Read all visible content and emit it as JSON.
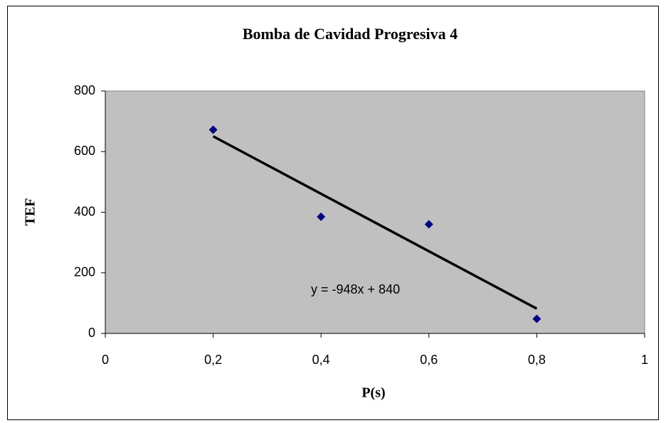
{
  "chart_data": {
    "type": "scatter",
    "title": "Bomba de Cavidad Progresiva 4",
    "x_label": "P(s)",
    "y_label": "TEF",
    "series": [
      {
        "name": "TEF",
        "color": "#000080",
        "x": [
          0.2,
          0.4,
          0.6,
          0.8
        ],
        "values": [
          672,
          385,
          360,
          48
        ]
      }
    ],
    "trendline": {
      "slope": -948,
      "intercept": 840,
      "label": "y = -948x + 840",
      "color": "#000000"
    },
    "xlim": [
      0,
      1
    ],
    "xticks": [
      0,
      {
        "value": 0.2,
        "label": "0,2"
      },
      {
        "value": 0.4,
        "label": "0,4"
      },
      {
        "value": 0.6,
        "label": "0,6"
      },
      {
        "value": 0.8,
        "label": "0,8"
      },
      1
    ],
    "ylim": [
      0,
      800
    ],
    "yticks": [
      0,
      200,
      400,
      600,
      800
    ],
    "plot_background": "#c0c0c0"
  }
}
